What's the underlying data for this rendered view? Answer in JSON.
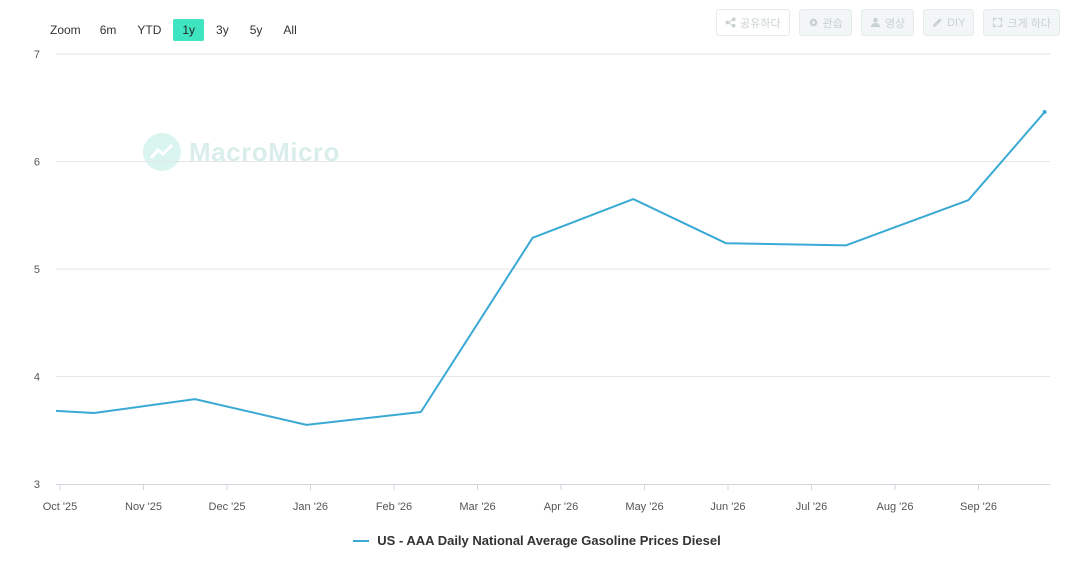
{
  "zoom": {
    "label": "Zoom",
    "buttons": [
      "6m",
      "YTD",
      "1y",
      "3y",
      "5y",
      "All"
    ],
    "active": "1y"
  },
  "toolbar": {
    "share_label": "공유하다",
    "settings_label": "관습",
    "profile_label": "영상",
    "diy_label": "DIY",
    "fullscreen_label": "크게 하다"
  },
  "watermark": {
    "text": "MacroMicro"
  },
  "colors": {
    "series": "#3aa9d4",
    "accent": "#3fe5c0",
    "grid": "#e6e6e6"
  },
  "chart_data": {
    "type": "line",
    "title": "",
    "xlabel": "",
    "ylabel": "",
    "ylim": [
      3,
      7
    ],
    "yticks": [
      3,
      4,
      5,
      6,
      7
    ],
    "xticks": [
      "Oct '25",
      "Nov '25",
      "Dec '25",
      "Jan '26",
      "Feb '26",
      "Mar '26",
      "Apr '26",
      "May '26",
      "Jun '26",
      "Jul '26",
      "Aug '26",
      "Sep '26"
    ],
    "grid": true,
    "legend_position": "bottom-center",
    "series": [
      {
        "name": "US - AAA Daily National Average Gasoline Prices Diesel",
        "x": [
          "2025-10-01",
          "2025-10-15",
          "2025-11-21",
          "2026-01-01",
          "2026-02-12",
          "2026-03-25",
          "2026-05-01",
          "2026-06-04",
          "2026-07-18",
          "2026-09-01",
          "2026-09-29"
        ],
        "y": [
          3.68,
          3.66,
          3.79,
          3.55,
          3.67,
          5.29,
          5.65,
          5.24,
          5.22,
          5.64,
          6.46
        ]
      }
    ]
  }
}
